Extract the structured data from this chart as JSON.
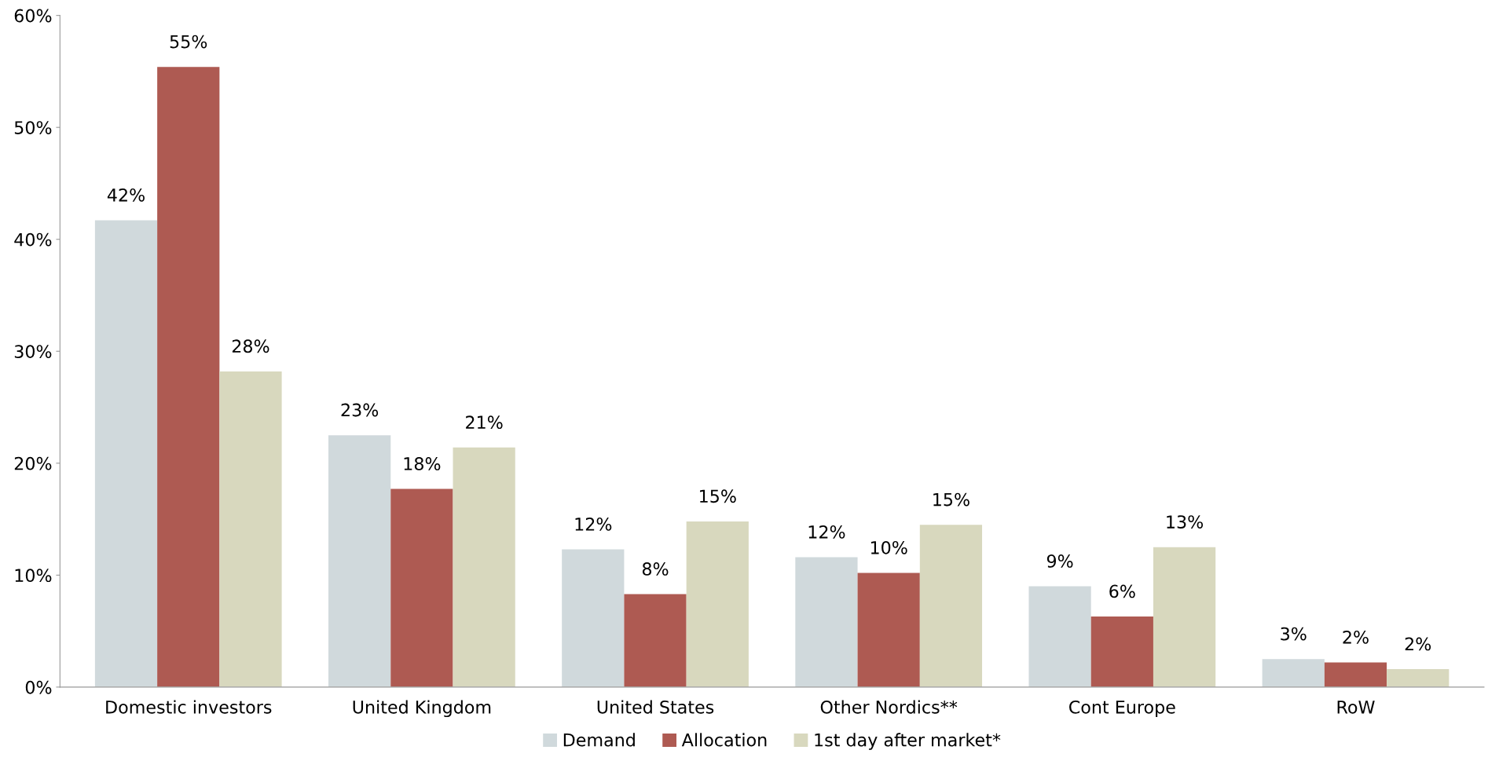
{
  "chart_data": {
    "type": "bar",
    "categories": [
      "Domestic investors",
      "United Kingdom",
      "United States",
      "Other Nordics**",
      "Cont Europe",
      "RoW"
    ],
    "series": [
      {
        "name": "Demand",
        "color": "#d0d9dc",
        "values": [
          41.7,
          22.5,
          12.3,
          11.6,
          9.0,
          2.5
        ],
        "value_labels": [
          "42%",
          "23%",
          "12%",
          "12%",
          "9%",
          "3%"
        ]
      },
      {
        "name": "Allocation",
        "color": "#ae5a52",
        "values": [
          55.4,
          17.7,
          8.3,
          10.2,
          6.3,
          2.2
        ],
        "value_labels": [
          "55%",
          "18%",
          "8%",
          "10%",
          "6%",
          "2%"
        ]
      },
      {
        "name": "1st day after market*",
        "color": "#d8d8be",
        "values": [
          28.2,
          21.4,
          14.8,
          14.5,
          12.5,
          1.6
        ],
        "value_labels": [
          "28%",
          "21%",
          "15%",
          "15%",
          "13%",
          "2%"
        ]
      }
    ],
    "ylim": [
      0,
      60
    ],
    "yticks": [
      {
        "value": 0,
        "label": "0%"
      },
      {
        "value": 10,
        "label": "10%"
      },
      {
        "value": 20,
        "label": "20%"
      },
      {
        "value": 30,
        "label": "30%"
      },
      {
        "value": 40,
        "label": "40%"
      },
      {
        "value": 50,
        "label": "50%"
      },
      {
        "value": 60,
        "label": "60%"
      }
    ],
    "grid": false,
    "legend": "bottom"
  }
}
